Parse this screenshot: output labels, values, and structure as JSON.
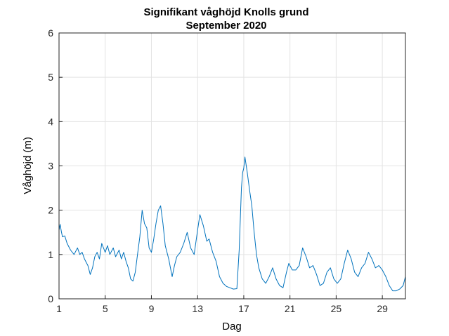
{
  "chart_data": {
    "type": "line",
    "title": "Signifikant våghöjd Knolls grund",
    "subtitle": "September 2020",
    "xlabel": "Dag",
    "ylabel": "Våghöjd (m)",
    "xlim": [
      1,
      31
    ],
    "ylim": [
      0,
      6
    ],
    "xticks": [
      1,
      5,
      9,
      13,
      17,
      21,
      25,
      29
    ],
    "xtick_labels": [
      "1",
      "5",
      "9",
      "13",
      "17",
      "21",
      "25",
      "29"
    ],
    "yticks": [
      0,
      1,
      2,
      3,
      4,
      5,
      6
    ],
    "ytick_labels": [
      "0",
      "1",
      "2",
      "3",
      "4",
      "5",
      "6"
    ],
    "grid": true,
    "series": [
      {
        "name": "Signifikant våghöjd",
        "color": "#0072BD",
        "x": [
          1.0,
          1.1,
          1.2,
          1.3,
          1.5,
          1.7,
          2.0,
          2.3,
          2.6,
          2.8,
          3.0,
          3.2,
          3.5,
          3.7,
          3.9,
          4.1,
          4.3,
          4.5,
          4.7,
          5.0,
          5.2,
          5.4,
          5.7,
          5.9,
          6.2,
          6.4,
          6.6,
          6.8,
          7.0,
          7.2,
          7.4,
          7.6,
          7.8,
          8.0,
          8.2,
          8.4,
          8.6,
          8.8,
          9.0,
          9.2,
          9.4,
          9.6,
          9.8,
          10.0,
          10.2,
          10.5,
          10.8,
          11.0,
          11.2,
          11.5,
          11.8,
          12.1,
          12.4,
          12.7,
          13.0,
          13.2,
          13.5,
          13.8,
          14.0,
          14.3,
          14.6,
          14.9,
          15.2,
          15.5,
          15.8,
          16.1,
          16.4,
          16.6,
          16.8,
          16.9,
          17.0,
          17.1,
          17.3,
          17.5,
          17.7,
          17.9,
          18.1,
          18.3,
          18.6,
          18.9,
          19.2,
          19.5,
          19.8,
          20.1,
          20.4,
          20.7,
          20.9,
          21.2,
          21.5,
          21.8,
          22.1,
          22.4,
          22.7,
          23.0,
          23.3,
          23.6,
          23.9,
          24.2,
          24.5,
          24.8,
          25.1,
          25.4,
          25.7,
          26.0,
          26.3,
          26.6,
          26.9,
          27.2,
          27.5,
          27.8,
          28.1,
          28.4,
          28.7,
          29.0,
          29.3,
          29.6,
          29.9,
          30.2,
          30.5,
          30.8,
          31.0
        ],
        "y": [
          1.55,
          1.68,
          1.52,
          1.4,
          1.42,
          1.25,
          1.1,
          1.0,
          1.15,
          1.0,
          1.05,
          0.9,
          0.75,
          0.55,
          0.7,
          0.95,
          1.05,
          0.9,
          1.25,
          1.05,
          1.2,
          1.0,
          1.15,
          0.95,
          1.1,
          0.9,
          1.05,
          0.85,
          0.7,
          0.45,
          0.4,
          0.6,
          1.0,
          1.4,
          2.0,
          1.7,
          1.6,
          1.15,
          1.05,
          1.35,
          1.7,
          2.0,
          2.1,
          1.7,
          1.2,
          0.9,
          0.5,
          0.75,
          0.95,
          1.05,
          1.25,
          1.5,
          1.15,
          1.0,
          1.55,
          1.9,
          1.65,
          1.3,
          1.35,
          1.05,
          0.85,
          0.5,
          0.35,
          0.28,
          0.25,
          0.22,
          0.23,
          1.1,
          2.5,
          2.85,
          2.95,
          3.2,
          2.85,
          2.45,
          2.1,
          1.5,
          1.0,
          0.7,
          0.45,
          0.35,
          0.5,
          0.7,
          0.45,
          0.3,
          0.25,
          0.6,
          0.8,
          0.65,
          0.65,
          0.75,
          1.15,
          0.95,
          0.7,
          0.75,
          0.55,
          0.3,
          0.35,
          0.6,
          0.7,
          0.45,
          0.35,
          0.45,
          0.8,
          1.1,
          0.9,
          0.6,
          0.5,
          0.7,
          0.8,
          1.05,
          0.9,
          0.7,
          0.75,
          0.65,
          0.5,
          0.3,
          0.18,
          0.18,
          0.22,
          0.3,
          0.5
        ]
      }
    ]
  }
}
